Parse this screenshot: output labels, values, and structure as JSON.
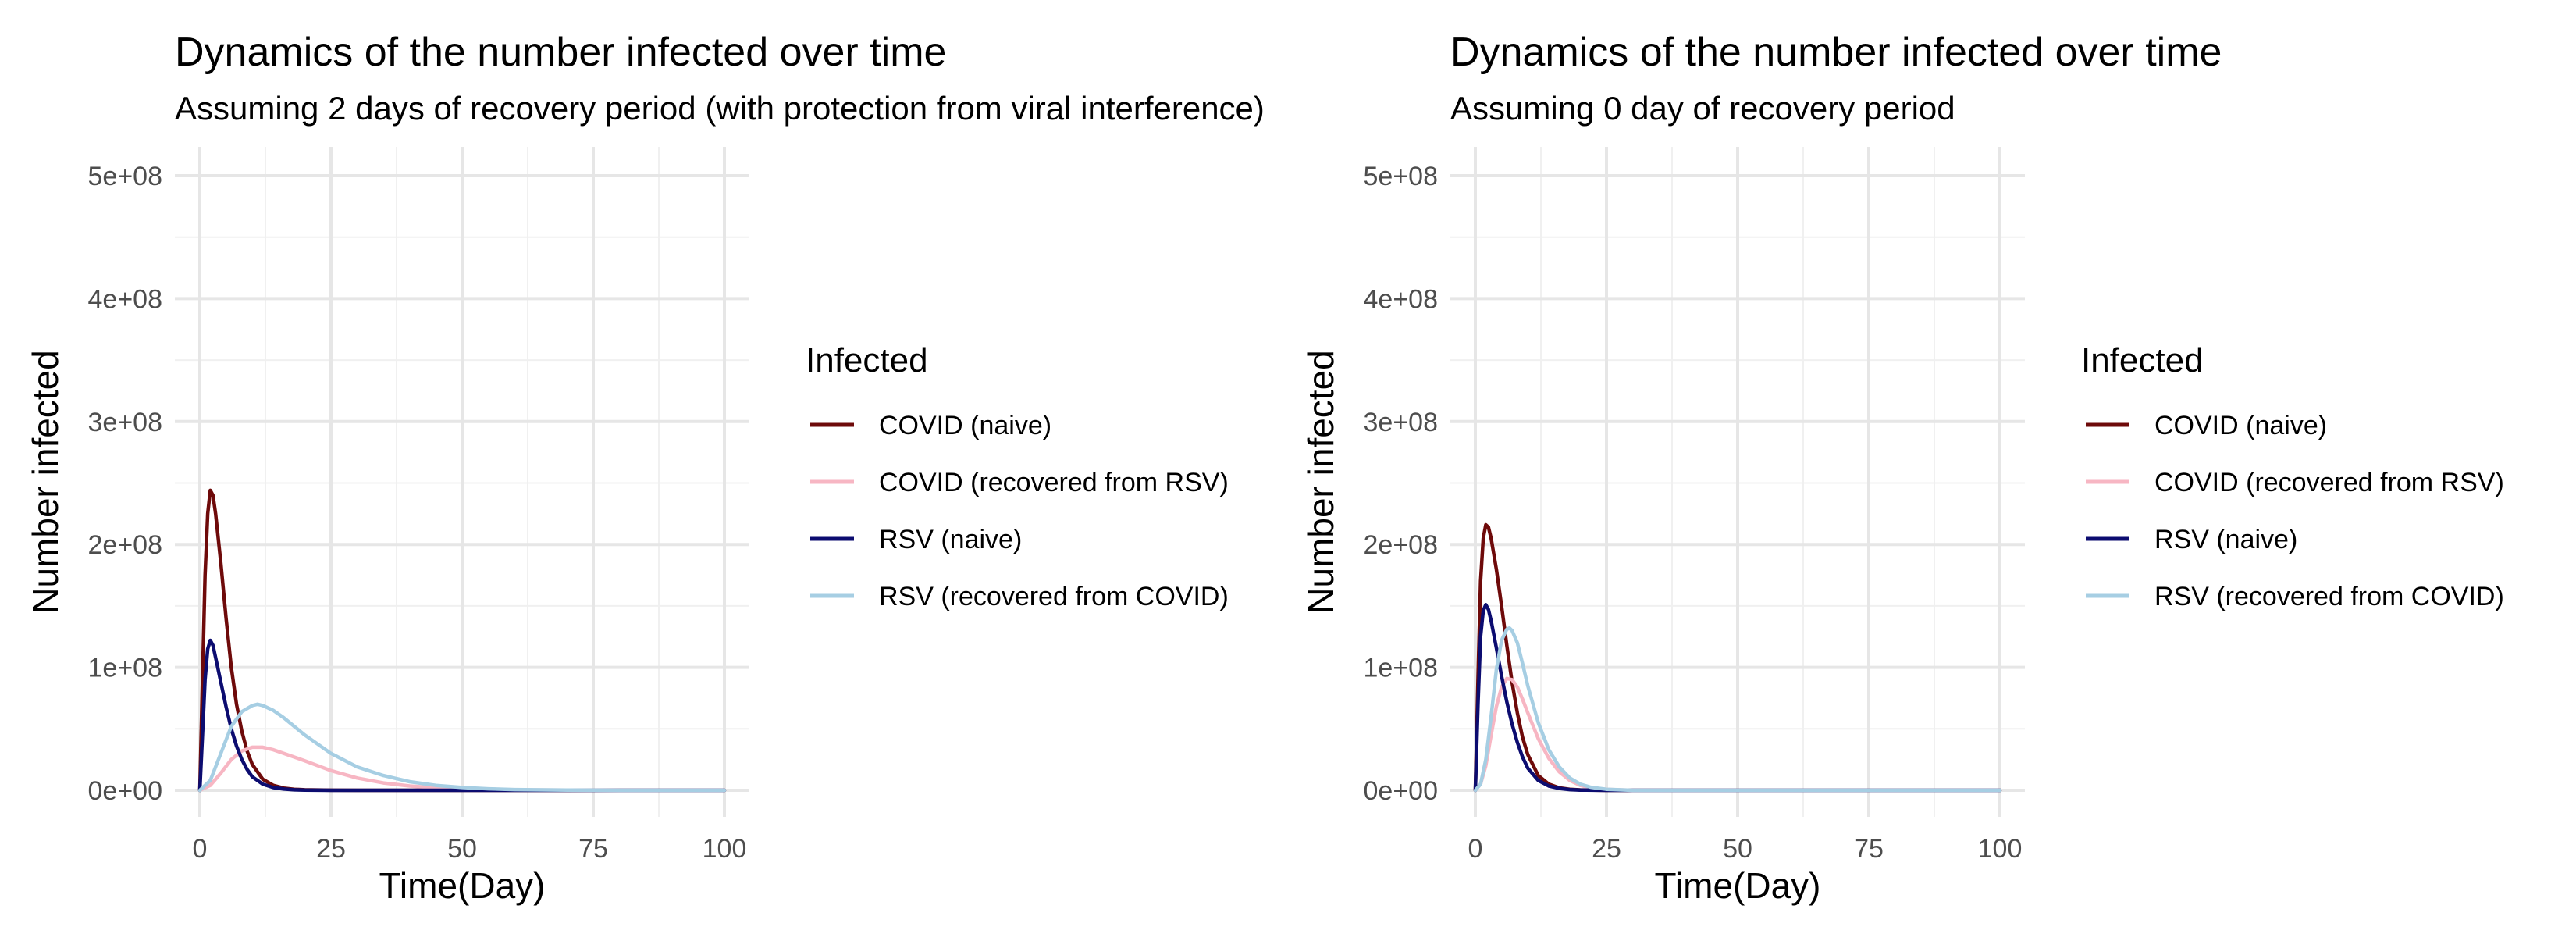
{
  "chart_data": [
    {
      "type": "line",
      "title": "Dynamics of the number infected over time",
      "subtitle": "Assuming 2 days of recovery period (with protection from viral interference)",
      "xlabel": "Time(Day)",
      "ylabel": "Number infected",
      "xlim": [
        0,
        100
      ],
      "ylim": [
        0,
        500000000
      ],
      "x_ticks": [
        0,
        25,
        50,
        75,
        100
      ],
      "x_tick_labels": [
        "0",
        "25",
        "50",
        "75",
        "100"
      ],
      "y_ticks": [
        0,
        100000000,
        200000000,
        300000000,
        400000000,
        500000000
      ],
      "y_tick_labels": [
        "0e+00",
        "1e+08",
        "2e+08",
        "3e+08",
        "4e+08",
        "5e+08"
      ],
      "grid": true,
      "legend": {
        "title": "Infected",
        "position": "right"
      },
      "series": [
        {
          "name": "COVID (naive)",
          "color": "#6e0a0a",
          "x": [
            0,
            0.5,
            1,
            1.5,
            2,
            2.5,
            3,
            4,
            5,
            6,
            7,
            8,
            9,
            10,
            12,
            14,
            16,
            18,
            20,
            25,
            30,
            40,
            50,
            60,
            80,
            100
          ],
          "values": [
            0,
            90000000,
            175000000,
            225000000,
            244000000,
            240000000,
            225000000,
            185000000,
            140000000,
            100000000,
            70000000,
            48000000,
            32000000,
            21000000,
            9000000,
            4000000,
            1800000,
            800000,
            400000,
            50000,
            0,
            0,
            0,
            0,
            0,
            0
          ]
        },
        {
          "name": "COVID (recovered from RSV)",
          "color": "#f7b6c3",
          "x": [
            0,
            2,
            4,
            6,
            8,
            10,
            12,
            14,
            16,
            18,
            20,
            25,
            30,
            35,
            40,
            45,
            50,
            60,
            70,
            80,
            90,
            100
          ],
          "values": [
            0,
            4000000,
            14000000,
            25000000,
            32000000,
            35000000,
            35000000,
            33000000,
            30000000,
            27000000,
            24000000,
            16000000,
            10000000,
            6000000,
            3500000,
            2000000,
            1000000,
            300000,
            100000,
            0,
            0,
            0
          ]
        },
        {
          "name": "RSV (naive)",
          "color": "#0c0c70",
          "x": [
            0,
            0.5,
            1,
            1.5,
            2,
            2.5,
            3,
            4,
            5,
            6,
            7,
            8,
            9,
            10,
            12,
            14,
            16,
            18,
            20,
            25,
            30,
            40,
            50,
            60,
            80,
            100
          ],
          "values": [
            0,
            45000000,
            90000000,
            115000000,
            122000000,
            118000000,
            108000000,
            88000000,
            68000000,
            50000000,
            36000000,
            25000000,
            17000000,
            11000000,
            5000000,
            2200000,
            1000000,
            400000,
            150000,
            0,
            0,
            0,
            0,
            0,
            0,
            0
          ]
        },
        {
          "name": "RSV (recovered from COVID)",
          "color": "#a6cee3",
          "x": [
            0,
            2,
            4,
            6,
            8,
            10,
            11,
            12,
            14,
            16,
            18,
            20,
            25,
            30,
            35,
            40,
            45,
            50,
            55,
            60,
            70,
            80,
            90,
            100
          ],
          "values": [
            0,
            8000000,
            30000000,
            52000000,
            64000000,
            69000000,
            70000000,
            69000000,
            65000000,
            59000000,
            52000000,
            45000000,
            30000000,
            19000000,
            12000000,
            7000000,
            4000000,
            2300000,
            1200000,
            600000,
            150000,
            0,
            0,
            0
          ]
        }
      ]
    },
    {
      "type": "line",
      "title": "Dynamics of the number infected over time",
      "subtitle": "Assuming 0 day of recovery period",
      "xlabel": "Time(Day)",
      "ylabel": "Number infected",
      "xlim": [
        0,
        100
      ],
      "ylim": [
        0,
        500000000
      ],
      "x_ticks": [
        0,
        25,
        50,
        75,
        100
      ],
      "x_tick_labels": [
        "0",
        "25",
        "50",
        "75",
        "100"
      ],
      "y_ticks": [
        0,
        100000000,
        200000000,
        300000000,
        400000000,
        500000000
      ],
      "y_tick_labels": [
        "0e+00",
        "1e+08",
        "2e+08",
        "3e+08",
        "4e+08",
        "5e+08"
      ],
      "grid": true,
      "legend": {
        "title": "Infected",
        "position": "right"
      },
      "series": [
        {
          "name": "COVID (naive)",
          "color": "#6e0a0a",
          "x": [
            0,
            0.5,
            1,
            1.5,
            2,
            2.5,
            3,
            4,
            5,
            6,
            7,
            8,
            9,
            10,
            12,
            14,
            16,
            18,
            20,
            25,
            30,
            40,
            60,
            80,
            100
          ],
          "values": [
            0,
            90000000,
            170000000,
            205000000,
            216000000,
            214000000,
            205000000,
            180000000,
            150000000,
            118000000,
            88000000,
            63000000,
            43000000,
            29000000,
            12000000,
            5000000,
            2000000,
            800000,
            300000,
            0,
            0,
            0,
            0,
            0,
            0
          ]
        },
        {
          "name": "COVID (recovered from RSV)",
          "color": "#f7b6c3",
          "x": [
            0,
            1,
            2,
            3,
            4,
            5,
            6,
            7,
            8,
            9,
            10,
            12,
            14,
            16,
            18,
            20,
            22,
            25,
            30,
            40,
            60,
            80,
            100
          ],
          "values": [
            0,
            5000000,
            20000000,
            45000000,
            68000000,
            84000000,
            91000000,
            90000000,
            84000000,
            74000000,
            63000000,
            42000000,
            26000000,
            15000000,
            8000000,
            4000000,
            2000000,
            700000,
            0,
            0,
            0,
            0,
            0
          ]
        },
        {
          "name": "RSV (naive)",
          "color": "#0c0c70",
          "x": [
            0,
            0.5,
            1,
            1.5,
            2,
            2.5,
            3,
            4,
            5,
            6,
            7,
            8,
            9,
            10,
            12,
            14,
            16,
            18,
            20,
            25,
            30,
            40,
            60,
            80,
            100
          ],
          "values": [
            0,
            70000000,
            125000000,
            146000000,
            151000000,
            147000000,
            138000000,
            116000000,
            93000000,
            72000000,
            54000000,
            39000000,
            27000000,
            18000000,
            8000000,
            3500000,
            1500000,
            600000,
            200000,
            0,
            0,
            0,
            0,
            0,
            0
          ]
        },
        {
          "name": "RSV (recovered from COVID)",
          "color": "#a6cee3",
          "x": [
            0,
            1,
            2,
            3,
            4,
            5,
            6,
            6.5,
            7,
            8,
            9,
            10,
            12,
            14,
            16,
            18,
            20,
            22,
            25,
            30,
            40,
            60,
            80,
            100
          ],
          "values": [
            0,
            5000000,
            25000000,
            60000000,
            98000000,
            122000000,
            131000000,
            132000000,
            130000000,
            120000000,
            103000000,
            85000000,
            55000000,
            33000000,
            19000000,
            10000000,
            5000000,
            2500000,
            800000,
            0,
            0,
            0,
            0,
            0
          ]
        }
      ]
    }
  ]
}
